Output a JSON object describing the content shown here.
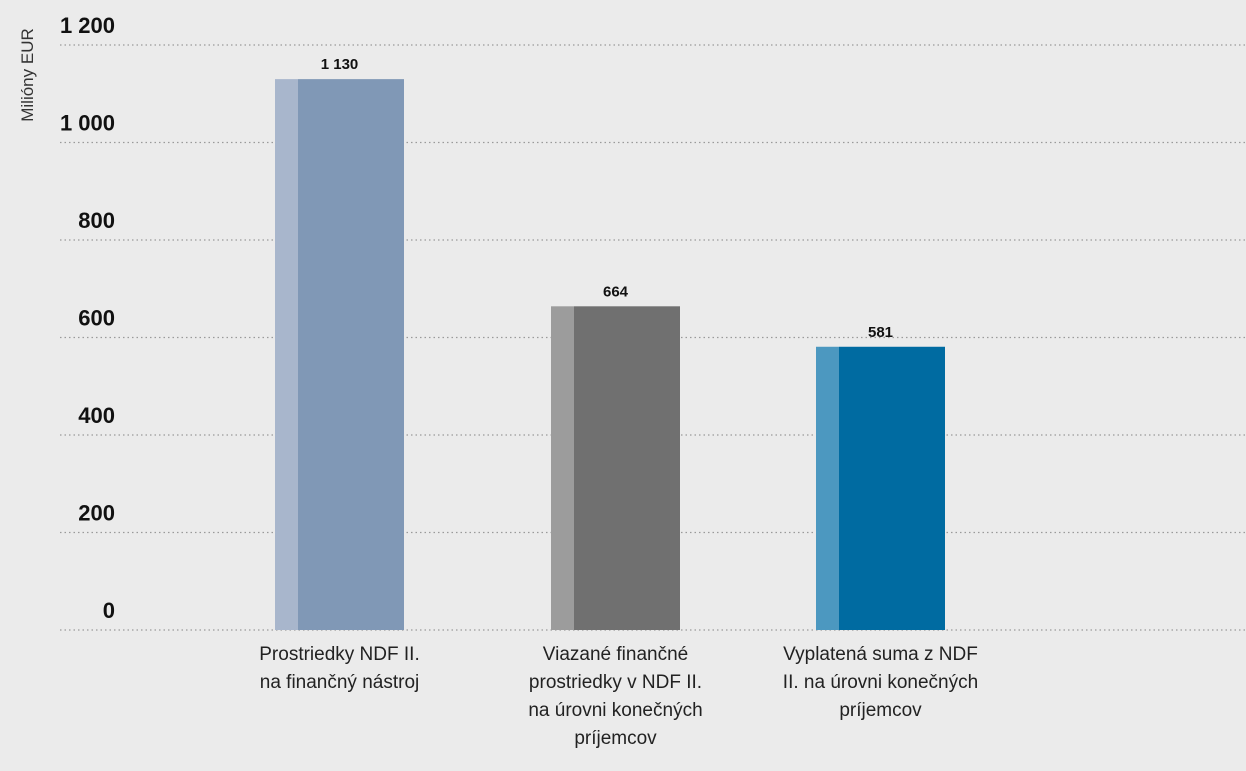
{
  "chart_data": {
    "type": "bar",
    "ylabel": "Milióny EUR",
    "ylim": [
      0,
      1200
    ],
    "yticks": [
      0,
      200,
      400,
      600,
      800,
      1000,
      1200
    ],
    "ytick_labels": [
      "0",
      "200",
      "400",
      "600",
      "800",
      "1 000",
      "1 200"
    ],
    "grid": true,
    "categories": [
      [
        "Prostriedky NDF II.",
        "na finančný nástroj"
      ],
      [
        "Viazané finančné",
        "prostriedky v NDF II.",
        "na úrovni konečných",
        "príjemcov"
      ],
      [
        "Vyplatená suma z NDF",
        "II. na úrovni konečných",
        "príjemcov"
      ]
    ],
    "values": [
      1130,
      664,
      581
    ],
    "value_labels": [
      "1 130",
      "664",
      "581"
    ],
    "colors": [
      {
        "main": "#8098b6",
        "side": "#a8b6cc"
      },
      {
        "main": "#707070",
        "side": "#9c9c9c"
      },
      {
        "main": "#006ba1",
        "side": "#4c98c0"
      }
    ]
  }
}
